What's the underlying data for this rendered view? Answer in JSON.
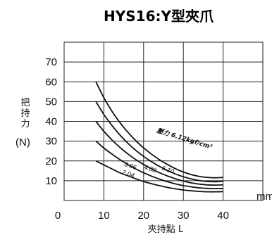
{
  "chart_data": {
    "type": "line",
    "title": "HYS16:Y型夾爪",
    "xlabel": "夾持點 L",
    "xunit": "mm",
    "ylabel_lines": [
      "把",
      "持",
      "力"
    ],
    "yunit": "(N)",
    "xlim": [
      0,
      50
    ],
    "ylim": [
      0,
      80
    ],
    "x_ticks": [
      0,
      10,
      20,
      30,
      40
    ],
    "y_ticks": [
      10,
      20,
      30,
      40,
      50,
      60,
      70
    ],
    "grid": true,
    "annotation": "壓力 6.12kgf/cm²",
    "series": [
      {
        "name": "2.04",
        "label_x": 14.5,
        "label_y": 13.5,
        "points": [
          [
            8,
            20
          ],
          [
            10,
            18
          ],
          [
            12,
            16
          ],
          [
            14,
            14
          ],
          [
            16,
            12.5
          ],
          [
            18,
            11
          ],
          [
            20,
            9.6
          ],
          [
            22,
            8.5
          ],
          [
            24,
            7.5
          ],
          [
            26,
            6.6
          ],
          [
            28,
            5.9
          ],
          [
            30,
            5.3
          ],
          [
            32,
            4.9
          ],
          [
            34,
            4.6
          ],
          [
            36,
            4.4
          ],
          [
            38,
            4.4
          ],
          [
            40,
            4.5
          ]
        ]
      },
      {
        "name": "3.06",
        "label_x": 15,
        "label_y": 17.5,
        "points": [
          [
            8,
            30
          ],
          [
            10,
            26.5
          ],
          [
            12,
            23.5
          ],
          [
            14,
            20.7
          ],
          [
            16,
            18.2
          ],
          [
            18,
            16
          ],
          [
            20,
            14
          ],
          [
            22,
            12.3
          ],
          [
            24,
            10.8
          ],
          [
            26,
            9.5
          ],
          [
            28,
            8.4
          ],
          [
            30,
            7.5
          ],
          [
            32,
            6.9
          ],
          [
            34,
            6.4
          ],
          [
            36,
            6.1
          ],
          [
            38,
            6.0
          ],
          [
            40,
            6.1
          ]
        ]
      },
      {
        "name": "4.08",
        "label_x": 20,
        "label_y": 16,
        "points": [
          [
            8,
            40
          ],
          [
            10,
            35
          ],
          [
            12,
            30.7
          ],
          [
            14,
            26.9
          ],
          [
            16,
            23.6
          ],
          [
            18,
            20.7
          ],
          [
            20,
            18.2
          ],
          [
            22,
            16
          ],
          [
            24,
            14
          ],
          [
            26,
            12.4
          ],
          [
            28,
            11
          ],
          [
            30,
            9.8
          ],
          [
            32,
            8.9
          ],
          [
            34,
            8.3
          ],
          [
            36,
            7.9
          ],
          [
            38,
            7.8
          ],
          [
            40,
            7.9
          ]
        ]
      },
      {
        "name": "5.10",
        "label_x": 24.5,
        "label_y": 15.5,
        "points": [
          [
            8,
            50
          ],
          [
            10,
            43.5
          ],
          [
            12,
            38
          ],
          [
            14,
            33.2
          ],
          [
            16,
            29
          ],
          [
            18,
            25.4
          ],
          [
            20,
            22.3
          ],
          [
            22,
            19.6
          ],
          [
            24,
            17.2
          ],
          [
            26,
            15.2
          ],
          [
            28,
            13.4
          ],
          [
            30,
            12
          ],
          [
            32,
            10.9
          ],
          [
            34,
            10.1
          ],
          [
            36,
            9.6
          ],
          [
            38,
            9.5
          ],
          [
            40,
            9.7
          ]
        ]
      },
      {
        "name": "6.12",
        "label_x": null,
        "label_y": null,
        "points": [
          [
            8,
            60
          ],
          [
            10,
            52
          ],
          [
            12,
            45.2
          ],
          [
            14,
            39.5
          ],
          [
            16,
            34.6
          ],
          [
            18,
            30.3
          ],
          [
            20,
            26.6
          ],
          [
            22,
            23.4
          ],
          [
            24,
            20.6
          ],
          [
            26,
            18.2
          ],
          [
            28,
            16.1
          ],
          [
            30,
            14.4
          ],
          [
            32,
            13.1
          ],
          [
            34,
            12.2
          ],
          [
            36,
            11.7
          ],
          [
            38,
            11.5
          ],
          [
            40,
            11.7
          ]
        ]
      }
    ]
  }
}
